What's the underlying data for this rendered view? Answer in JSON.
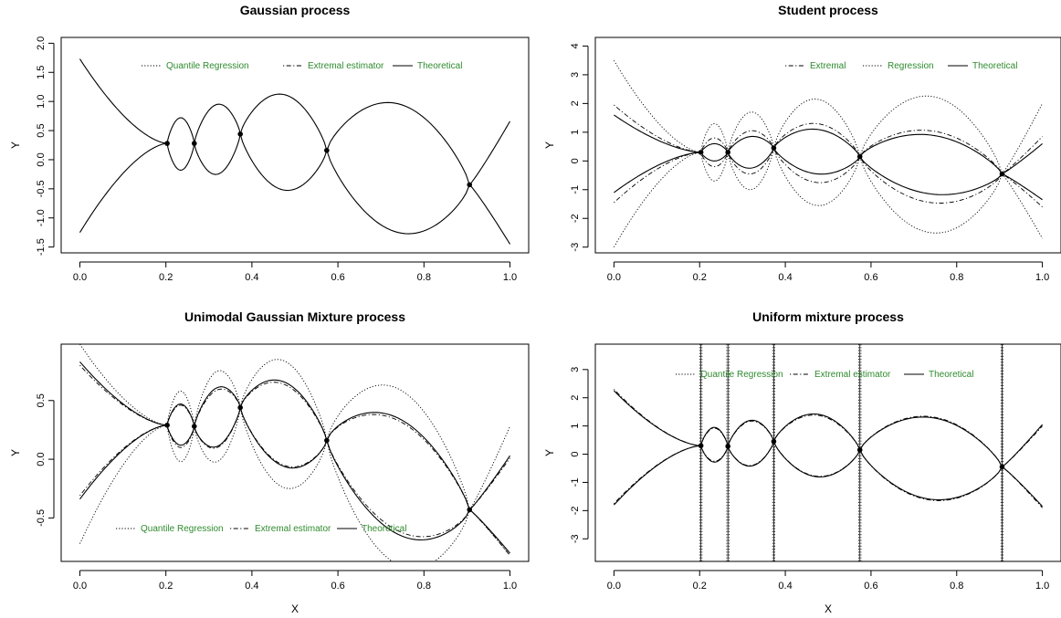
{
  "colors": {
    "legend_text": "#2e8b2e",
    "ink": "#000000"
  },
  "chart_data": [
    {
      "type": "line",
      "title": "Gaussian process",
      "xlabel": "",
      "ylabel": "Y",
      "xlim": [
        0,
        1
      ],
      "ylim": [
        -1.6,
        2.1
      ],
      "xticks": [
        0.0,
        0.2,
        0.4,
        0.6,
        0.8,
        1.0
      ],
      "xtick_labels": [
        "0.0",
        "0.2",
        "0.4",
        "0.6",
        "0.8",
        "1.0"
      ],
      "yticks": [
        -1.5,
        -1.0,
        -0.5,
        0.0,
        0.5,
        1.0,
        1.5,
        2.0
      ],
      "ytick_labels": [
        "-1.5",
        "-1.0",
        "-0.5",
        "0.0",
        "0.5",
        "1.0",
        "1.5",
        "2.0"
      ],
      "legend": {
        "placement": "top",
        "entries": [
          {
            "label": "Quantile Regression",
            "dash": "dotted"
          },
          {
            "label": "Extremal estimator",
            "dash": "dotdash"
          },
          {
            "label": "Theoretical",
            "dash": "solid"
          }
        ]
      },
      "knots": [
        {
          "x": 0.203,
          "y": 0.28
        },
        {
          "x": 0.266,
          "y": 0.28
        },
        {
          "x": 0.373,
          "y": 0.44
        },
        {
          "x": 0.574,
          "y": 0.16
        },
        {
          "x": 0.906,
          "y": -0.43
        }
      ],
      "series": [
        {
          "dash": "solid",
          "left": [
            -1.25,
            1.73
          ],
          "right": [
            -1.45,
            0.66
          ],
          "arcs": [
            [
              0.72,
              -0.18
            ],
            [
              0.95,
              -0.25
            ],
            [
              1.12,
              -0.52
            ],
            [
              0.96,
              -1.25
            ]
          ]
        }
      ]
    },
    {
      "type": "line",
      "title": "Student process",
      "xlabel": "",
      "ylabel": "Y",
      "xlim": [
        0,
        1
      ],
      "ylim": [
        -3.2,
        4.3
      ],
      "xticks": [
        0.0,
        0.2,
        0.4,
        0.6,
        0.8,
        1.0
      ],
      "xtick_labels": [
        "0.0",
        "0.2",
        "0.4",
        "0.6",
        "0.8",
        "1.0"
      ],
      "yticks": [
        -3,
        -2,
        -1,
        0,
        1,
        2,
        3,
        4
      ],
      "ytick_labels": [
        "-3",
        "-2",
        "-1",
        "0",
        "1",
        "2",
        "3",
        "4"
      ],
      "legend": {
        "placement": "top-right",
        "entries": [
          {
            "label": "Extremal",
            "dash": "dotdash"
          },
          {
            "label": "Regression",
            "dash": "dotted"
          },
          {
            "label": "Theoretical",
            "dash": "solid"
          }
        ]
      },
      "knots": [
        {
          "x": 0.203,
          "y": 0.3
        },
        {
          "x": 0.266,
          "y": 0.3
        },
        {
          "x": 0.373,
          "y": 0.45
        },
        {
          "x": 0.574,
          "y": 0.15
        },
        {
          "x": 0.906,
          "y": -0.45
        }
      ],
      "series": [
        {
          "dash": "solid",
          "left": [
            -1.1,
            1.6
          ],
          "right": [
            -1.35,
            0.6
          ],
          "arcs": [
            [
              0.6,
              0.0
            ],
            [
              0.85,
              -0.25
            ],
            [
              1.1,
              -0.45
            ],
            [
              0.9,
              -1.15
            ]
          ]
        },
        {
          "dash": "dotdash",
          "left": [
            -1.45,
            1.95
          ],
          "right": [
            -1.6,
            0.85
          ],
          "arcs": [
            [
              0.8,
              -0.2
            ],
            [
              1.05,
              -0.45
            ],
            [
              1.3,
              -0.75
            ],
            [
              1.05,
              -1.45
            ]
          ]
        },
        {
          "dash": "dotted",
          "left": [
            -3.0,
            3.5
          ],
          "right": [
            -2.7,
            2.0
          ],
          "arcs": [
            [
              1.3,
              -0.7
            ],
            [
              1.7,
              -1.0
            ],
            [
              2.15,
              -1.55
            ],
            [
              2.25,
              -2.5
            ]
          ]
        }
      ]
    },
    {
      "type": "line",
      "title": "Unimodal Gaussian Mixture process",
      "xlabel": "X",
      "ylabel": "Y",
      "xlim": [
        0,
        1
      ],
      "ylim": [
        -0.87,
        0.98
      ],
      "xticks": [
        0.0,
        0.2,
        0.4,
        0.6,
        0.8,
        1.0
      ],
      "xtick_labels": [
        "0.0",
        "0.2",
        "0.4",
        "0.6",
        "0.8",
        "1.0"
      ],
      "yticks": [
        -0.5,
        0.0,
        0.5
      ],
      "ytick_labels": [
        "-0.5",
        "0.0",
        "0.5"
      ],
      "legend": {
        "placement": "bottom",
        "entries": [
          {
            "label": "Quantile Regression",
            "dash": "dotted"
          },
          {
            "label": "Extremal estimator",
            "dash": "dotdash"
          },
          {
            "label": "Theoretical",
            "dash": "solid"
          }
        ]
      },
      "knots": [
        {
          "x": 0.203,
          "y": 0.29
        },
        {
          "x": 0.266,
          "y": 0.28
        },
        {
          "x": 0.373,
          "y": 0.44
        },
        {
          "x": 0.574,
          "y": 0.16
        },
        {
          "x": 0.906,
          "y": -0.43
        }
      ],
      "series": [
        {
          "dash": "solid",
          "left": [
            -0.34,
            0.83
          ],
          "right": [
            -0.8,
            0.03
          ],
          "arcs": [
            [
              0.47,
              0.12
            ],
            [
              0.61,
              0.11
            ],
            [
              0.66,
              -0.06
            ],
            [
              0.35,
              -0.64
            ]
          ]
        },
        {
          "dash": "dotdash",
          "left": [
            -0.31,
            0.8
          ],
          "right": [
            -0.82,
            0.01
          ],
          "arcs": [
            [
              0.46,
              0.1
            ],
            [
              0.59,
              0.1
            ],
            [
              0.64,
              -0.05
            ],
            [
              0.33,
              -0.61
            ]
          ]
        },
        {
          "dash": "dotted",
          "left": [
            -0.72,
            0.98
          ],
          "right": [
            -0.82,
            0.28
          ],
          "arcs": [
            [
              0.58,
              -0.02
            ],
            [
              0.75,
              -0.02
            ],
            [
              0.84,
              -0.24
            ],
            [
              0.6,
              -0.9
            ]
          ]
        }
      ]
    },
    {
      "type": "line",
      "title": "Uniform mixture process",
      "xlabel": "X",
      "ylabel": "Y",
      "xlim": [
        0,
        1
      ],
      "ylim": [
        -3.8,
        3.9
      ],
      "xticks": [
        0.0,
        0.2,
        0.4,
        0.6,
        0.8,
        1.0
      ],
      "xtick_labels": [
        "0.0",
        "0.2",
        "0.4",
        "0.6",
        "0.8",
        "1.0"
      ],
      "yticks": [
        -3,
        -2,
        -1,
        0,
        1,
        2,
        3
      ],
      "ytick_labels": [
        "-3",
        "-2",
        "-1",
        "0",
        "1",
        "2",
        "3"
      ],
      "legend": {
        "placement": "top",
        "entries": [
          {
            "label": "Quantile Regression",
            "dash": "dotted"
          },
          {
            "label": "Extremal estimator",
            "dash": "dotdash"
          },
          {
            "label": "Theoretical",
            "dash": "solid"
          }
        ]
      },
      "knots": [
        {
          "x": 0.203,
          "y": 0.3
        },
        {
          "x": 0.266,
          "y": 0.28
        },
        {
          "x": 0.373,
          "y": 0.45
        },
        {
          "x": 0.574,
          "y": 0.15
        },
        {
          "x": 0.906,
          "y": -0.45
        }
      ],
      "vertical_lines": [
        0.203,
        0.266,
        0.373,
        0.574,
        0.906
      ],
      "series": [
        {
          "dash": "solid",
          "left": [
            -1.8,
            2.25
          ],
          "right": [
            -1.85,
            1.05
          ],
          "arcs": [
            [
              0.95,
              -0.28
            ],
            [
              1.2,
              -0.42
            ],
            [
              1.42,
              -0.8
            ],
            [
              1.3,
              -1.6
            ]
          ]
        },
        {
          "dash": "dotdash",
          "left": [
            -1.75,
            2.3
          ],
          "right": [
            -1.9,
            1.0
          ],
          "arcs": [
            [
              0.92,
              -0.25
            ],
            [
              1.17,
              -0.4
            ],
            [
              1.38,
              -0.78
            ],
            [
              1.33,
              -1.63
            ]
          ]
        }
      ]
    }
  ]
}
